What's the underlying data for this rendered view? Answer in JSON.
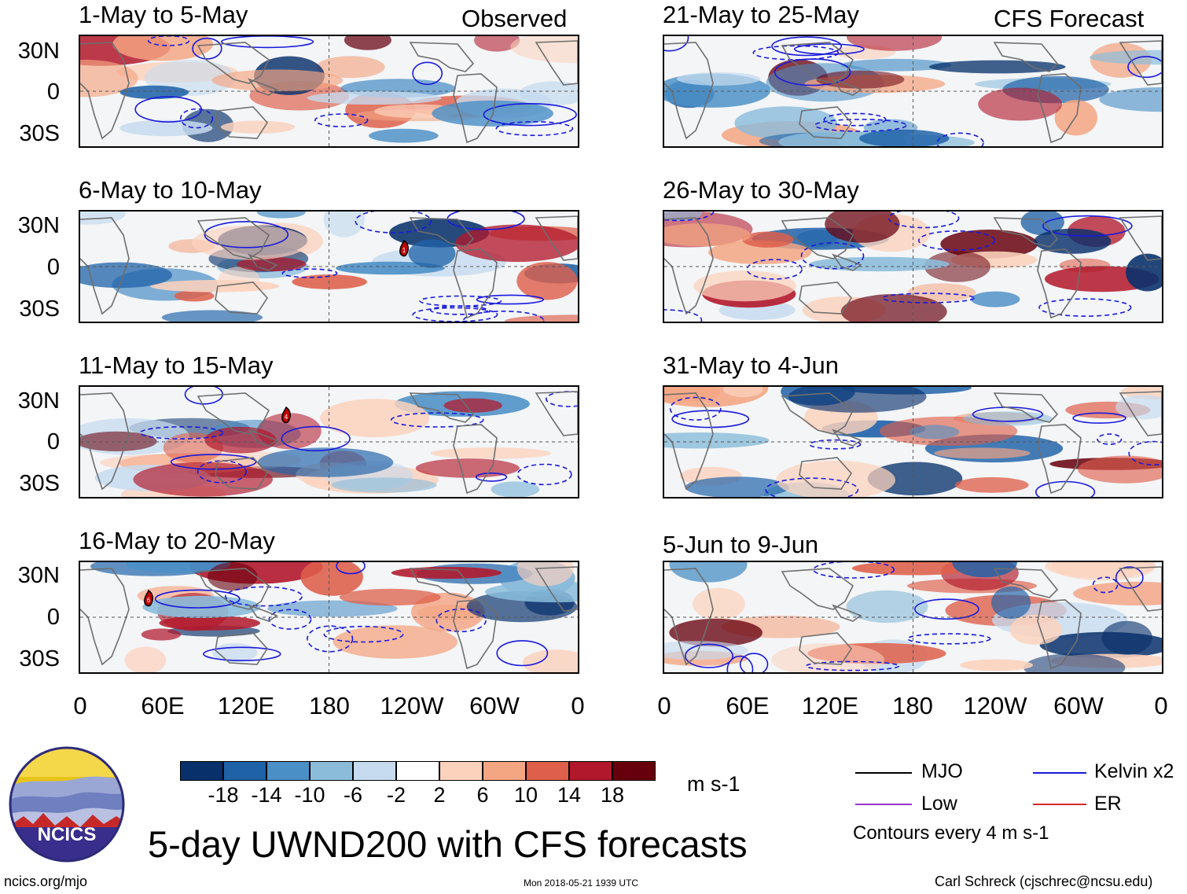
{
  "header": {
    "observed_label": "Observed",
    "forecast_label": "CFS Forecast"
  },
  "panels": [
    {
      "title": "1-May to 5-May",
      "kind": "observed",
      "storms": []
    },
    {
      "title": "6-May to 10-May",
      "kind": "observed",
      "storms": [
        "1"
      ]
    },
    {
      "title": "11-May to 15-May",
      "kind": "observed",
      "storms": [
        "4"
      ]
    },
    {
      "title": "16-May to 20-May",
      "kind": "observed",
      "storms": [
        "6"
      ]
    },
    {
      "title": "21-May to 25-May",
      "kind": "forecast",
      "storms": []
    },
    {
      "title": "26-May to 30-May",
      "kind": "forecast",
      "storms": []
    },
    {
      "title": "31-May to 4-Jun",
      "kind": "forecast",
      "storms": []
    },
    {
      "title": "5-Jun to 9-Jun",
      "kind": "forecast",
      "storms": []
    }
  ],
  "axes": {
    "y_labels": [
      "30N",
      "0",
      "30S"
    ],
    "x_labels": [
      "0",
      "60E",
      "120E",
      "180",
      "120W",
      "60W",
      "0"
    ]
  },
  "colorbar": {
    "colors": [
      "#08306b",
      "#1f62a8",
      "#4a8fc6",
      "#8bbddb",
      "#c6dbef",
      "#ffffff",
      "#fcd2bd",
      "#f4a582",
      "#de5f4a",
      "#b2182b",
      "#67000d"
    ],
    "labels": [
      "-18",
      "-14",
      "-10",
      "-6",
      "-2",
      "2",
      "6",
      "10",
      "14",
      "18"
    ],
    "units": "m s-1"
  },
  "legend": {
    "items": [
      {
        "label": "MJO",
        "color": "#000000"
      },
      {
        "label": "Kelvin x2",
        "color": "#1a1adc"
      },
      {
        "label": "Low",
        "color": "#9933cc"
      },
      {
        "label": "ER",
        "color": "#d62728"
      }
    ],
    "contour_note": "Contours every 4 m s-1"
  },
  "logo": {
    "text": "NCICS"
  },
  "title": "5-day UWND200 with CFS forecasts",
  "footer": {
    "url": "ncics.org/mjo",
    "timestamp": "Mon 2018-05-21 1939 UTC",
    "author": "Carl Schreck (cjschrec@ncsu.edu)"
  }
}
